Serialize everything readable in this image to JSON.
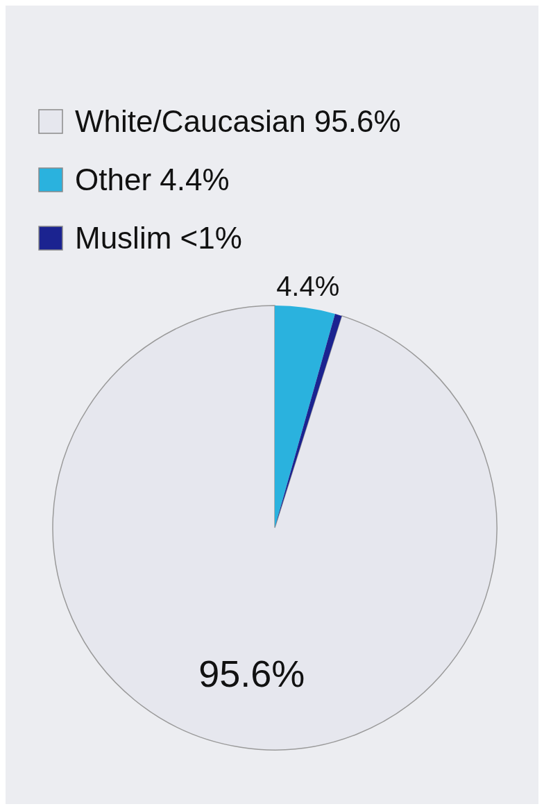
{
  "chart_data": {
    "type": "pie",
    "categories": [
      "White/Caucasian 95.6%",
      "Other 4.4%",
      "Muslim <1%"
    ],
    "values": [
      95.6,
      4.4,
      0.5
    ],
    "colors": [
      "#e6e7ee",
      "#2ab2de",
      "#1b2390"
    ],
    "value_labels": [
      "95.6%",
      "4.4%",
      null
    ],
    "legend": "top left"
  }
}
